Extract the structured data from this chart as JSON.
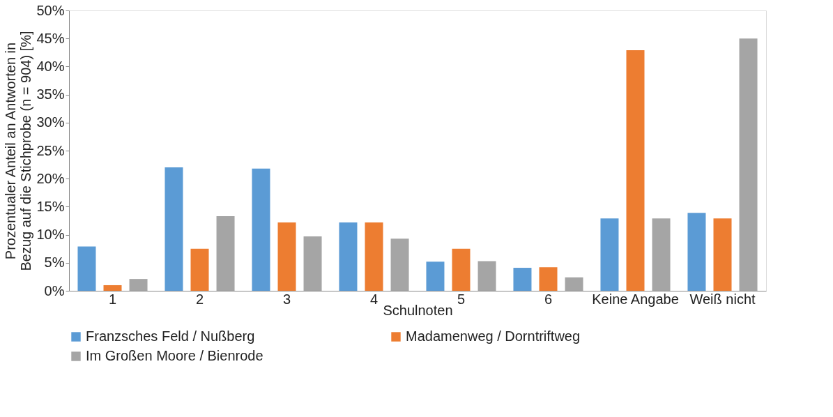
{
  "chart_data": {
    "type": "bar",
    "xlabel": "Schulnoten",
    "ylabel": "Prozentualer Anteil an Antworten in Bezug auf die Stichprobe (n = 904) [%]",
    "categories": [
      "1",
      "2",
      "3",
      "4",
      "5",
      "6",
      "Keine Angabe",
      "Weiß nicht"
    ],
    "series": [
      {
        "name": "Franzsches Feld / Nußberg",
        "color": "#5b9bd5",
        "values": [
          7.9,
          22.0,
          21.8,
          12.2,
          5.2,
          4.1,
          12.9,
          13.9
        ]
      },
      {
        "name": "Madamenweg / Dorntriftweg",
        "color": "#ed7d31",
        "values": [
          1.0,
          7.5,
          12.2,
          12.2,
          7.5,
          4.2,
          42.9,
          12.9
        ]
      },
      {
        "name": "Im Großen Moore / Bienrode",
        "color": "#a5a5a5",
        "values": [
          2.1,
          13.3,
          9.7,
          9.3,
          5.3,
          2.4,
          12.9,
          45.0
        ]
      }
    ],
    "ylim": [
      0,
      50
    ],
    "yticks": [
      {
        "value": 0,
        "label": "0%"
      },
      {
        "value": 5,
        "label": "5%"
      },
      {
        "value": 10,
        "label": "10%"
      },
      {
        "value": 15,
        "label": "15%"
      },
      {
        "value": 20,
        "label": "20%"
      },
      {
        "value": 25,
        "label": "25%"
      },
      {
        "value": 30,
        "label": "30%"
      },
      {
        "value": 35,
        "label": "35%"
      },
      {
        "value": 40,
        "label": "40%"
      },
      {
        "value": 45,
        "label": "45%"
      },
      {
        "value": 50,
        "label": "50%"
      }
    ],
    "grid": false,
    "legend": "bottom"
  }
}
